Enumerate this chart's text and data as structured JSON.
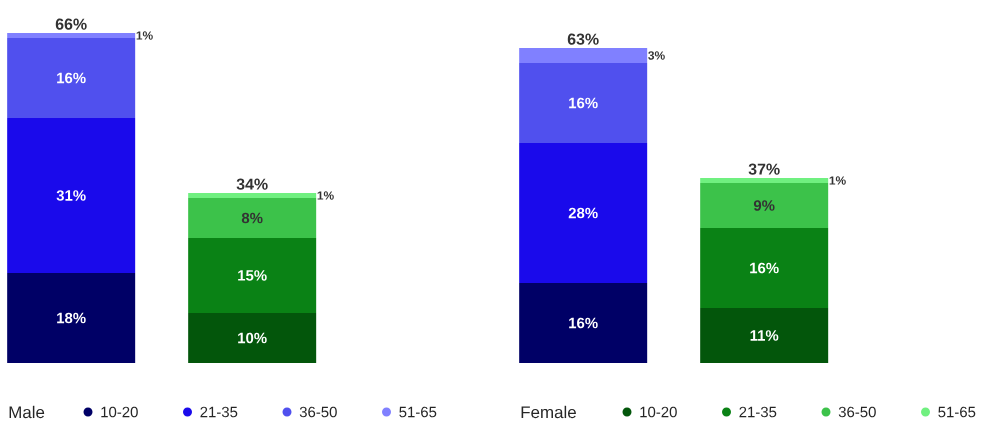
{
  "chart_data": [
    {
      "type": "bar",
      "stacked": true,
      "categories": [
        null,
        null
      ],
      "legend": "bottom",
      "legend_title": "Male",
      "totals": [
        "66%",
        "34%"
      ],
      "series": [
        {
          "name": "10-20",
          "colors": [
            "#000066",
            "#03560b"
          ],
          "values": [
            18,
            10
          ],
          "value_labels": [
            "18%",
            "10%"
          ]
        },
        {
          "name": "21-35",
          "colors": [
            "#1a0aeb",
            "#0a8215"
          ],
          "values": [
            31,
            15
          ],
          "value_labels": [
            "31%",
            "15%"
          ]
        },
        {
          "name": "36-50",
          "colors": [
            "#5050ee",
            "#3cc24a"
          ],
          "values": [
            16,
            8
          ],
          "value_labels": [
            "16%",
            "8%"
          ]
        },
        {
          "name": "51-65",
          "colors": [
            "#8080ff",
            "#70f080"
          ],
          "values": [
            1,
            1
          ],
          "value_labels": [
            "1%",
            "1%"
          ]
        }
      ]
    },
    {
      "type": "bar",
      "stacked": true,
      "categories": [
        null,
        null
      ],
      "legend": "bottom",
      "legend_title": "Female",
      "totals": [
        "63%",
        "37%"
      ],
      "series": [
        {
          "name": "10-20",
          "colors": [
            "#000066",
            "#03560b"
          ],
          "values": [
            16,
            11
          ],
          "value_labels": [
            "16%",
            "11%"
          ]
        },
        {
          "name": "21-35",
          "colors": [
            "#1a0aeb",
            "#0a8215"
          ],
          "values": [
            28,
            16
          ],
          "value_labels": [
            "28%",
            "16%"
          ]
        },
        {
          "name": "36-50",
          "colors": [
            "#5050ee",
            "#3cc24a"
          ],
          "values": [
            16,
            9
          ],
          "value_labels": [
            "16%",
            "9%"
          ]
        },
        {
          "name": "51-65",
          "colors": [
            "#8080ff",
            "#70f080"
          ],
          "values": [
            3,
            1
          ],
          "value_labels": [
            "3%",
            "1%"
          ]
        }
      ]
    }
  ]
}
